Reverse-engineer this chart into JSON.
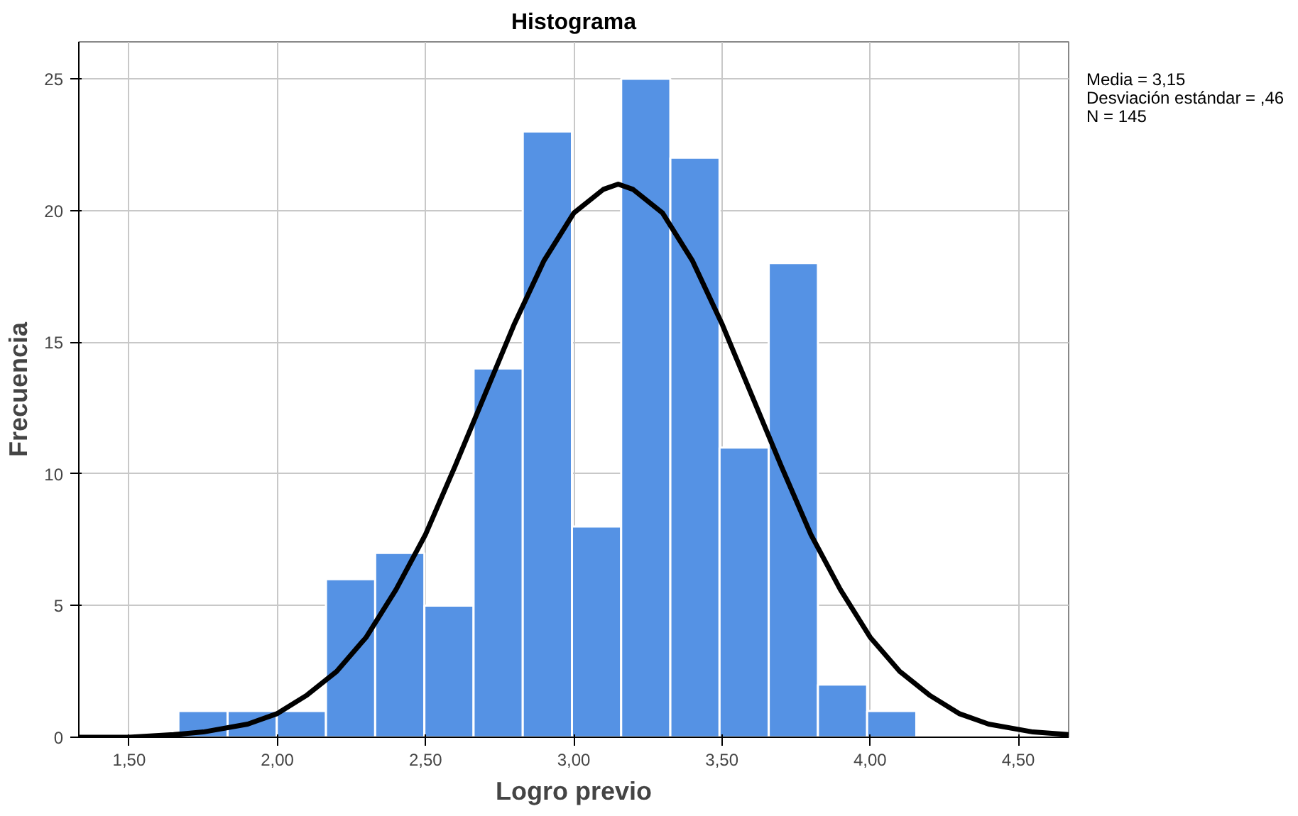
{
  "chart_data": {
    "type": "histogram",
    "title": "Histograma",
    "xlabel": "Logro previo",
    "ylabel": "Frecuencia",
    "bins": [
      1.666,
      1.832,
      1.998,
      2.164,
      2.33,
      2.496,
      2.662,
      2.828,
      2.994,
      3.16,
      3.326,
      3.492,
      3.658,
      3.824,
      3.99,
      4.156
    ],
    "values": [
      1,
      1,
      1,
      6,
      7,
      5,
      14,
      23,
      8,
      25,
      22,
      11,
      18,
      2,
      1
    ],
    "color": "#5592e4",
    "series": [
      {
        "type": "line",
        "color": "#000000",
        "x": [
          1.33,
          1.5,
          1.65,
          1.75,
          1.9,
          2.0,
          2.1,
          2.2,
          2.3,
          2.4,
          2.5,
          2.6,
          2.7,
          2.8,
          2.9,
          3.0,
          3.1,
          3.15,
          3.2,
          3.3,
          3.4,
          3.5,
          3.6,
          3.7,
          3.8,
          3.9,
          4.0,
          4.1,
          4.2,
          4.3,
          4.4,
          4.55,
          4.67
        ],
        "values": [
          0.0,
          0.0,
          0.1,
          0.2,
          0.5,
          0.9,
          1.6,
          2.5,
          3.8,
          5.6,
          7.7,
          10.3,
          13.0,
          15.7,
          18.1,
          19.9,
          20.8,
          21.0,
          20.8,
          19.9,
          18.1,
          15.7,
          13.0,
          10.3,
          7.7,
          5.6,
          3.8,
          2.5,
          1.6,
          0.9,
          0.5,
          0.2,
          0.1
        ]
      }
    ],
    "xlim": [
      1.33,
      4.67
    ],
    "ylim": [
      0,
      26.4
    ],
    "xticks": [
      {
        "value": 1.5,
        "label": "1,50"
      },
      {
        "value": 2.0,
        "label": "2,00"
      },
      {
        "value": 2.5,
        "label": "2,50"
      },
      {
        "value": 3.0,
        "label": "3,00"
      },
      {
        "value": 3.5,
        "label": "3,50"
      },
      {
        "value": 4.0,
        "label": "4,00"
      },
      {
        "value": 4.5,
        "label": "4,50"
      }
    ],
    "yticks": [
      0,
      5,
      10,
      15,
      20,
      25
    ],
    "grid": true,
    "annotations": [
      "Media = 3,15",
      "Desviación estándar = ,46",
      "N = 145"
    ]
  }
}
